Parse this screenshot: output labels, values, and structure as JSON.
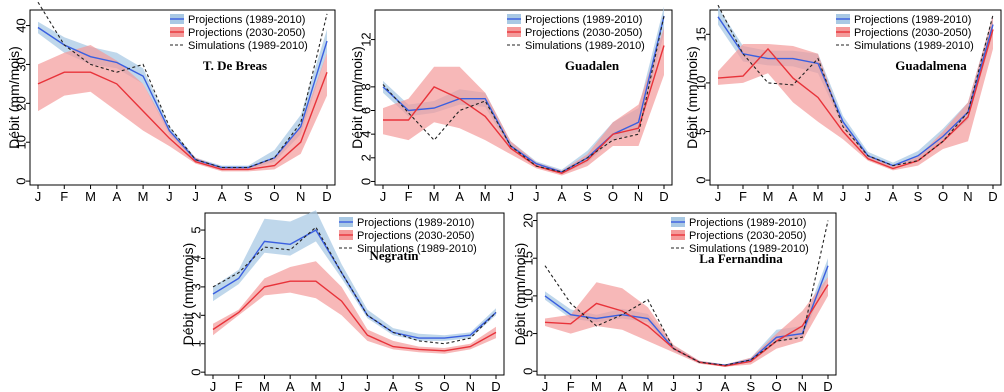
{
  "colors": {
    "proj_hist_line": "#3a5fe0",
    "proj_hist_band": "#a9c9e4",
    "proj_fut_line": "#e8333a",
    "proj_fut_band": "#f49a9a",
    "sim_line": "#222222"
  },
  "chart_data": [
    {
      "type": "line",
      "title": "T. De Breas",
      "ylabel": "Débit (mm/mois)",
      "xlabel": "",
      "categories": [
        "J",
        "F",
        "M",
        "A",
        "M",
        "J",
        "J",
        "A",
        "S",
        "O",
        "N",
        "D"
      ],
      "ylim": [
        -1,
        44
      ],
      "yticks": [
        0,
        10,
        20,
        30,
        40
      ],
      "legend_position": "top-right",
      "series": [
        {
          "name": "Projections (1989-2010)",
          "kind": "proj_hist",
          "values": [
            39.5,
            35,
            32,
            30.5,
            27,
            13,
            5.5,
            3.5,
            3.5,
            6,
            14,
            36
          ],
          "lower": [
            38,
            33,
            30,
            29,
            25,
            12,
            5,
            3,
            3,
            5,
            12,
            33
          ],
          "upper": [
            41,
            37,
            34.5,
            33,
            29,
            14,
            6,
            4,
            4,
            8,
            17,
            39
          ]
        },
        {
          "name": "Projections (2030-2050)",
          "kind": "proj_fut",
          "values": [
            25,
            28,
            28,
            25,
            18,
            11,
            5,
            3,
            3,
            4,
            10,
            28
          ],
          "lower": [
            18,
            22,
            23,
            18,
            13,
            9,
            4.5,
            2.5,
            2.5,
            3,
            7,
            22
          ],
          "upper": [
            30,
            33,
            35,
            31,
            25,
            13,
            6,
            3.5,
            3.5,
            6,
            14,
            33
          ]
        },
        {
          "name": "Simulations (1989-2010)",
          "kind": "sim",
          "values": [
            46,
            35,
            30,
            28,
            30,
            14,
            5.5,
            3.5,
            3.5,
            6,
            15,
            43
          ]
        }
      ]
    },
    {
      "type": "line",
      "title": "Guadalen",
      "ylabel": "Débit (mm/mois)",
      "xlabel": "",
      "categories": [
        "J",
        "F",
        "M",
        "A",
        "M",
        "J",
        "J",
        "A",
        "S",
        "O",
        "N",
        "D"
      ],
      "ylim": [
        -0.3,
        14.5
      ],
      "yticks": [
        0,
        2,
        4,
        6,
        8,
        12
      ],
      "legend_position": "top-right",
      "series": [
        {
          "name": "Projections (1989-2010)",
          "kind": "proj_hist",
          "values": [
            8,
            6,
            6.2,
            7,
            7,
            3,
            1.5,
            0.8,
            2,
            4,
            5,
            14
          ],
          "lower": [
            7.5,
            5.5,
            5.8,
            6.5,
            6.3,
            2.7,
            1.3,
            0.6,
            1.6,
            3.5,
            4.2,
            12.5
          ],
          "upper": [
            8.5,
            6.5,
            6.8,
            7.8,
            7.5,
            3.4,
            1.7,
            1,
            2.6,
            5,
            6.2,
            14.8
          ]
        },
        {
          "name": "Projections (2030-2050)",
          "kind": "proj_fut",
          "values": [
            5.2,
            5.2,
            8,
            7,
            5.5,
            2.8,
            1.3,
            0.7,
            1.8,
            4,
            4.5,
            11.5
          ],
          "lower": [
            4,
            3.5,
            5,
            4.5,
            3.5,
            2.3,
            1.1,
            0.5,
            1.3,
            3,
            3,
            9
          ],
          "upper": [
            6.2,
            7,
            9.7,
            9.7,
            7.5,
            3.4,
            1.6,
            0.9,
            2.3,
            5,
            6.5,
            13
          ]
        },
        {
          "name": "Simulations (1989-2010)",
          "kind": "sim",
          "values": [
            8.2,
            5.8,
            3.5,
            6,
            6.8,
            3,
            1.3,
            0.8,
            2,
            3.5,
            4,
            14
          ]
        }
      ]
    },
    {
      "type": "line",
      "title": "Guadalmena",
      "ylabel": "Débit (mm/mois)",
      "xlabel": "",
      "categories": [
        "J",
        "F",
        "M",
        "A",
        "M",
        "J",
        "J",
        "A",
        "S",
        "O",
        "N",
        "D"
      ],
      "ylim": [
        -0.5,
        17.5
      ],
      "yticks": [
        0,
        5,
        10,
        15
      ],
      "legend_position": "top-right",
      "series": [
        {
          "name": "Projections (1989-2010)",
          "kind": "proj_hist",
          "values": [
            16.8,
            13,
            12.5,
            12.5,
            12,
            6,
            2.5,
            1.5,
            2.5,
            4.5,
            7,
            16
          ],
          "lower": [
            16,
            12.2,
            11.8,
            11.7,
            11,
            5.5,
            2.2,
            1.3,
            2.1,
            4,
            6.2,
            15
          ],
          "upper": [
            17.8,
            13.8,
            13.3,
            13.3,
            13,
            6.6,
            2.9,
            1.8,
            3,
            5.3,
            8,
            17
          ]
        },
        {
          "name": "Projections (2030-2050)",
          "kind": "proj_fut",
          "values": [
            10.5,
            10.7,
            13.5,
            10.5,
            8.5,
            5,
            2.2,
            1.2,
            2,
            4,
            6.5,
            15.5
          ],
          "lower": [
            9.8,
            10,
            11,
            8,
            6,
            4.2,
            2,
            1,
            1.5,
            3.2,
            4,
            13.5
          ],
          "upper": [
            11.2,
            14,
            14,
            13.8,
            13,
            5.8,
            2.5,
            1.4,
            2.4,
            5,
            8,
            17
          ]
        },
        {
          "name": "Simulations (1989-2010)",
          "kind": "sim",
          "values": [
            18,
            13,
            10,
            9.8,
            12.5,
            5.5,
            2.5,
            1.5,
            2,
            4,
            7,
            17
          ]
        }
      ]
    },
    {
      "type": "line",
      "title": "Negratin",
      "ylabel": "Débit (mm/mois)",
      "xlabel": "",
      "categories": [
        "J",
        "F",
        "M",
        "A",
        "M",
        "J",
        "J",
        "A",
        "S",
        "O",
        "N",
        "D"
      ],
      "ylim": [
        -0.1,
        5.6
      ],
      "yticks": [
        0,
        1,
        2,
        3,
        4,
        5
      ],
      "legend_position": "top-right",
      "series": [
        {
          "name": "Projections (1989-2010)",
          "kind": "proj_hist",
          "values": [
            2.75,
            3.3,
            4.6,
            4.5,
            5,
            3.5,
            2,
            1.4,
            1.2,
            1.2,
            1.3,
            2.1
          ],
          "lower": [
            2.5,
            3.1,
            4.2,
            4.1,
            4.6,
            3.3,
            1.9,
            1.3,
            1.1,
            1.1,
            1.2,
            2
          ],
          "upper": [
            3.0,
            3.6,
            5.4,
            5.3,
            5.7,
            3.8,
            2.2,
            1.55,
            1.35,
            1.3,
            1.4,
            2.25
          ]
        },
        {
          "name": "Projections (2030-2050)",
          "kind": "proj_fut",
          "values": [
            1.5,
            2.1,
            3,
            3.2,
            3.2,
            2.5,
            1.3,
            0.9,
            0.8,
            0.75,
            0.9,
            1.4
          ],
          "lower": [
            1.3,
            2,
            2.7,
            2.8,
            2.6,
            2,
            1.1,
            0.8,
            0.7,
            0.65,
            0.8,
            1.2
          ],
          "upper": [
            1.7,
            2.2,
            3.3,
            3.7,
            3.9,
            3,
            1.5,
            1.1,
            0.9,
            0.85,
            1,
            1.6
          ]
        },
        {
          "name": "Simulations (1989-2010)",
          "kind": "sim",
          "values": [
            3,
            3.5,
            4.4,
            4.3,
            5.1,
            3.5,
            2,
            1.4,
            1.1,
            1,
            1.2,
            2.1
          ]
        }
      ]
    },
    {
      "type": "line",
      "title": "La Fernandina",
      "ylabel": "Débit (mm/mois)",
      "xlabel": "",
      "categories": [
        "J",
        "F",
        "M",
        "A",
        "M",
        "J",
        "J",
        "A",
        "S",
        "O",
        "N",
        "D"
      ],
      "ylim": [
        -0.5,
        21
      ],
      "yticks": [
        0,
        5,
        10,
        15,
        20
      ],
      "legend_position": "top-right",
      "series": [
        {
          "name": "Projections (1989-2010)",
          "kind": "proj_hist",
          "values": [
            10,
            7.5,
            7,
            7.5,
            7,
            3,
            1.2,
            0.8,
            1.5,
            4.5,
            5,
            14
          ],
          "lower": [
            9.5,
            7,
            6.5,
            7,
            6.5,
            2.7,
            1.1,
            0.7,
            1.2,
            3.8,
            4.5,
            12.5
          ],
          "upper": [
            10.6,
            8.2,
            7.5,
            8.3,
            7.6,
            3.4,
            1.4,
            0.9,
            1.8,
            5.5,
            6,
            15
          ]
        },
        {
          "name": "Projections (2030-2050)",
          "kind": "proj_fut",
          "values": [
            6.5,
            6.3,
            9,
            8,
            6,
            3,
            1.2,
            0.7,
            1.3,
            4,
            6,
            11.5
          ],
          "lower": [
            6,
            5,
            6,
            5.5,
            4,
            2.5,
            1.0,
            0.6,
            0.9,
            3,
            4,
            10
          ],
          "upper": [
            7,
            7.5,
            11.8,
            11,
            8.5,
            3.5,
            1.4,
            0.9,
            1.8,
            5,
            8,
            12.5
          ]
        },
        {
          "name": "Simulations (1989-2010)",
          "kind": "sim",
          "values": [
            14,
            9,
            6,
            7.5,
            9.5,
            3,
            1.2,
            0.8,
            1.5,
            4,
            4.5,
            20
          ]
        }
      ]
    }
  ]
}
